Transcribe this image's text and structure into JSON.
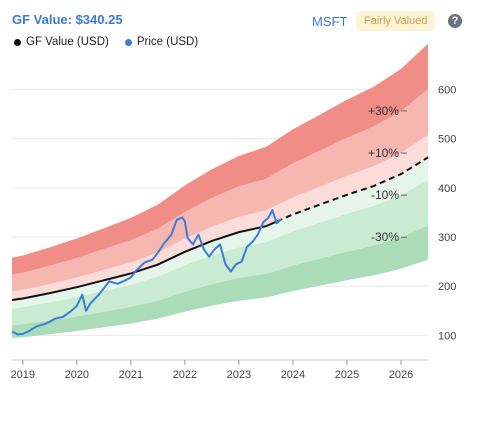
{
  "header": {
    "title": "GF Value: $340.25",
    "ticker": "MSFT",
    "badge": "Fairly Valued",
    "help_icon": "?"
  },
  "legend": {
    "gf_value": "GF Value (USD)",
    "price": "Price (USD)"
  },
  "colors": {
    "accent": "#3b7ad6",
    "price_line": "#3a7bdb",
    "gf_line": "#111111",
    "badge_bg": "#fdf3d5",
    "badge_text": "#c9a24a",
    "red_dark": "#ef8d86",
    "red_mid": "#f6b7b1",
    "red_light": "#fbdcd8",
    "green_light": "#e6f5ea",
    "green_mid": "#c9ebd2",
    "green_dark": "#a9dcb7"
  },
  "chart_data": {
    "type": "line",
    "x_ticks": [
      "2019",
      "2020",
      "2021",
      "2022",
      "2023",
      "2024",
      "2025",
      "2026"
    ],
    "y_ticks": [
      100,
      200,
      300,
      400,
      500,
      600
    ],
    "xlim": [
      2018.8,
      2026.5
    ],
    "ylim": [
      50,
      660
    ],
    "band_labels": [
      "+30%",
      "+10%",
      "-10%",
      "-30%"
    ],
    "series": [
      {
        "name": "GF Value (USD)",
        "style": "solid-until-2023.7-then-dashed",
        "points": [
          [
            2018.8,
            172
          ],
          [
            2019.0,
            175
          ],
          [
            2019.5,
            186
          ],
          [
            2020.0,
            198
          ],
          [
            2020.5,
            212
          ],
          [
            2021.0,
            226
          ],
          [
            2021.5,
            244
          ],
          [
            2022.0,
            270
          ],
          [
            2022.5,
            292
          ],
          [
            2023.0,
            310
          ],
          [
            2023.5,
            322
          ],
          [
            2024.0,
            346
          ],
          [
            2024.5,
            366
          ],
          [
            2025.0,
            386
          ],
          [
            2025.5,
            404
          ],
          [
            2026.0,
            428
          ],
          [
            2026.5,
            462
          ]
        ]
      },
      {
        "name": "Price (USD)",
        "points": [
          [
            2018.8,
            108
          ],
          [
            2018.9,
            102
          ],
          [
            2019.0,
            103
          ],
          [
            2019.1,
            108
          ],
          [
            2019.25,
            118
          ],
          [
            2019.4,
            123
          ],
          [
            2019.5,
            128
          ],
          [
            2019.6,
            134
          ],
          [
            2019.75,
            138
          ],
          [
            2019.9,
            150
          ],
          [
            2020.0,
            160
          ],
          [
            2020.1,
            183
          ],
          [
            2020.17,
            150
          ],
          [
            2020.25,
            165
          ],
          [
            2020.4,
            182
          ],
          [
            2020.5,
            196
          ],
          [
            2020.6,
            210
          ],
          [
            2020.75,
            205
          ],
          [
            2020.9,
            212
          ],
          [
            2021.0,
            218
          ],
          [
            2021.1,
            232
          ],
          [
            2021.25,
            248
          ],
          [
            2021.4,
            254
          ],
          [
            2021.5,
            268
          ],
          [
            2021.6,
            285
          ],
          [
            2021.75,
            305
          ],
          [
            2021.85,
            335
          ],
          [
            2021.95,
            340
          ],
          [
            2022.0,
            332
          ],
          [
            2022.05,
            298
          ],
          [
            2022.15,
            285
          ],
          [
            2022.25,
            305
          ],
          [
            2022.35,
            275
          ],
          [
            2022.45,
            260
          ],
          [
            2022.55,
            275
          ],
          [
            2022.65,
            285
          ],
          [
            2022.75,
            245
          ],
          [
            2022.85,
            230
          ],
          [
            2022.95,
            245
          ],
          [
            2023.05,
            250
          ],
          [
            2023.15,
            280
          ],
          [
            2023.25,
            290
          ],
          [
            2023.35,
            305
          ],
          [
            2023.45,
            330
          ],
          [
            2023.55,
            340
          ],
          [
            2023.62,
            355
          ],
          [
            2023.7,
            328
          ],
          [
            2023.78,
            336
          ]
        ]
      }
    ],
    "bands": {
      "multipliers": [
        0.55,
        0.7,
        0.9,
        1.1,
        1.3,
        1.5
      ]
    },
    "grid": true
  }
}
